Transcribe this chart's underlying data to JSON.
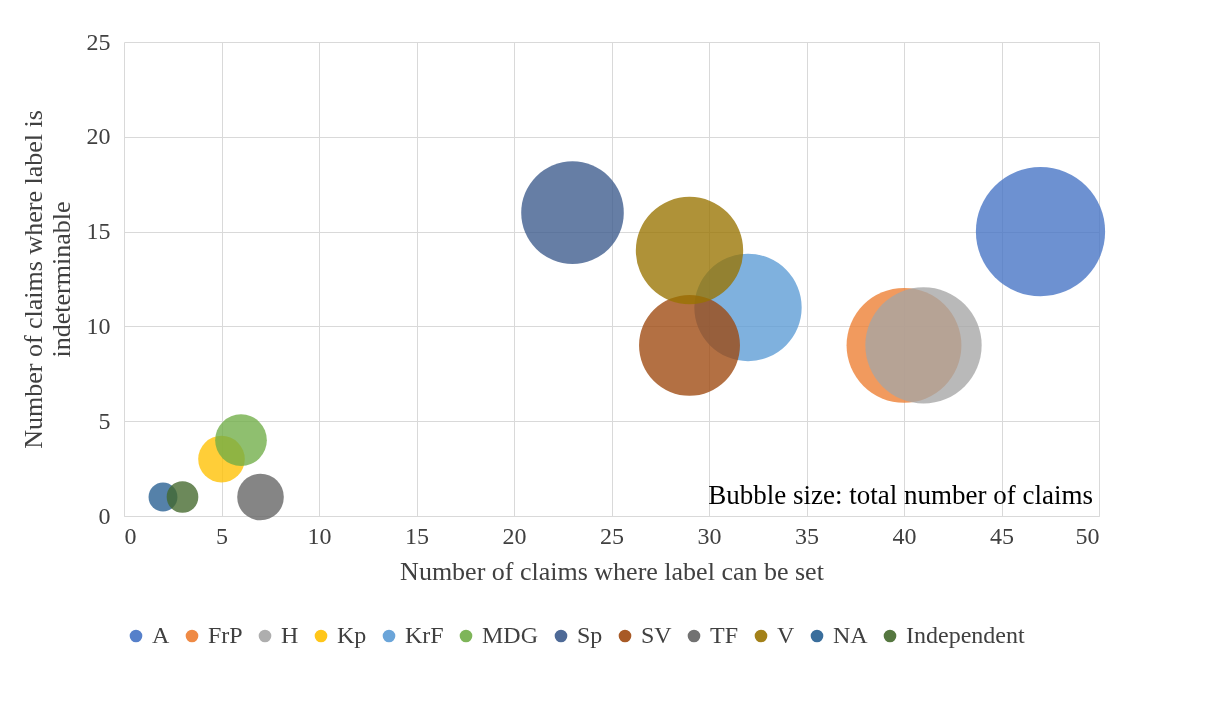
{
  "chart_data": {
    "type": "bubble",
    "xlabel": "Number of claims where label can be set",
    "ylabel": "Number of claims where label is indeterminable",
    "annotations": [
      "Bubble size: total number of claims"
    ],
    "xlim": [
      0,
      50
    ],
    "xticks": [
      0,
      5,
      10,
      15,
      20,
      25,
      30,
      35,
      40,
      45,
      50
    ],
    "ylim": [
      0,
      25
    ],
    "yticks": [
      0,
      5,
      10,
      15,
      20,
      25
    ],
    "grid": true,
    "legend": "bottom",
    "series": [
      {
        "name": "A",
        "color": "#4472c4",
        "x": [
          47
        ],
        "values": [
          15
        ],
        "sizes": [
          1
        ]
      },
      {
        "name": "FrP",
        "color": "#ed7d31",
        "x": [
          40
        ],
        "values": [
          9
        ],
        "sizes": [
          0.79
        ]
      },
      {
        "name": "H",
        "color": "#a5a5a5",
        "x": [
          41
        ],
        "values": [
          9
        ],
        "sizes": [
          0.81
        ]
      },
      {
        "name": "Kp",
        "color": "#ffc000",
        "x": [
          5
        ],
        "values": [
          3
        ],
        "sizes": [
          0.13
        ]
      },
      {
        "name": "KrF",
        "color": "#5b9bd5",
        "x": [
          32
        ],
        "values": [
          11
        ],
        "sizes": [
          0.69
        ]
      },
      {
        "name": "MDG",
        "color": "#70ad47",
        "x": [
          6
        ],
        "values": [
          4
        ],
        "sizes": [
          0.16
        ]
      },
      {
        "name": "Sp",
        "color": "#3b5a8c",
        "x": [
          23
        ],
        "values": [
          16
        ],
        "sizes": [
          0.63
        ]
      },
      {
        "name": "SV",
        "color": "#9e480e",
        "x": [
          29
        ],
        "values": [
          9
        ],
        "sizes": [
          0.61
        ]
      },
      {
        "name": "TF",
        "color": "#636363",
        "x": [
          7
        ],
        "values": [
          1
        ],
        "sizes": [
          0.13
        ]
      },
      {
        "name": "V",
        "color": "#997300",
        "x": [
          29
        ],
        "values": [
          14
        ],
        "sizes": [
          0.69
        ]
      },
      {
        "name": "NA",
        "color": "#255e91",
        "x": [
          2
        ],
        "values": [
          1
        ],
        "sizes": [
          0.05
        ]
      },
      {
        "name": "Independent",
        "color": "#43682b",
        "x": [
          3
        ],
        "values": [
          1
        ],
        "sizes": [
          0.06
        ]
      }
    ]
  }
}
